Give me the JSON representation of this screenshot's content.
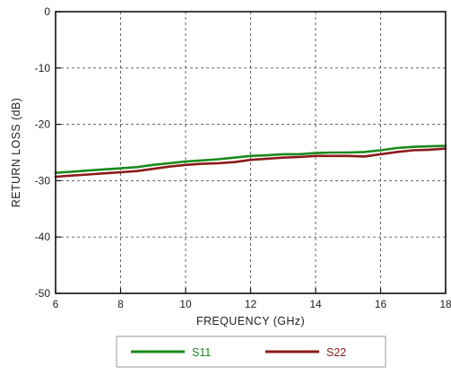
{
  "chart_data": {
    "type": "line",
    "title": "",
    "xlabel": "FREQUENCY (GHz)",
    "ylabel": "RETURN LOSS (dB)",
    "xlim": [
      6,
      18
    ],
    "ylim": [
      -50,
      0
    ],
    "xticks": [
      "6",
      "8",
      "10",
      "12",
      "14",
      "16",
      "18"
    ],
    "yticks": [
      "0",
      "-10",
      "-20",
      "-30",
      "-40",
      "-50"
    ],
    "grid": true,
    "legend_position": "bottom",
    "series": [
      {
        "name": "S11",
        "color": "#1a8a1a",
        "x": [
          6,
          6.5,
          7,
          7.5,
          8,
          8.5,
          9,
          9.5,
          10,
          10.5,
          11,
          11.5,
          12,
          12.5,
          13,
          13.5,
          14,
          14.5,
          15,
          15.5,
          16,
          16.5,
          17,
          17.5,
          18
        ],
        "y": [
          -28.6,
          -28.4,
          -28.2,
          -28.0,
          -27.8,
          -27.6,
          -27.2,
          -26.9,
          -26.6,
          -26.4,
          -26.2,
          -25.9,
          -25.6,
          -25.5,
          -25.3,
          -25.3,
          -25.1,
          -25.0,
          -25.0,
          -24.9,
          -24.6,
          -24.2,
          -24.0,
          -23.9,
          -23.8
        ]
      },
      {
        "name": "S22",
        "color": "#8b1a1a",
        "x": [
          6,
          6.5,
          7,
          7.5,
          8,
          8.5,
          9,
          9.5,
          10,
          10.5,
          11,
          11.5,
          12,
          12.5,
          13,
          13.5,
          14,
          14.5,
          15,
          15.5,
          16,
          16.5,
          17,
          17.5,
          18
        ],
        "y": [
          -29.3,
          -29.1,
          -28.9,
          -28.7,
          -28.5,
          -28.3,
          -27.9,
          -27.5,
          -27.2,
          -27.0,
          -26.9,
          -26.7,
          -26.3,
          -26.1,
          -25.9,
          -25.8,
          -25.6,
          -25.6,
          -25.6,
          -25.7,
          -25.3,
          -24.9,
          -24.6,
          -24.5,
          -24.3
        ]
      }
    ]
  }
}
